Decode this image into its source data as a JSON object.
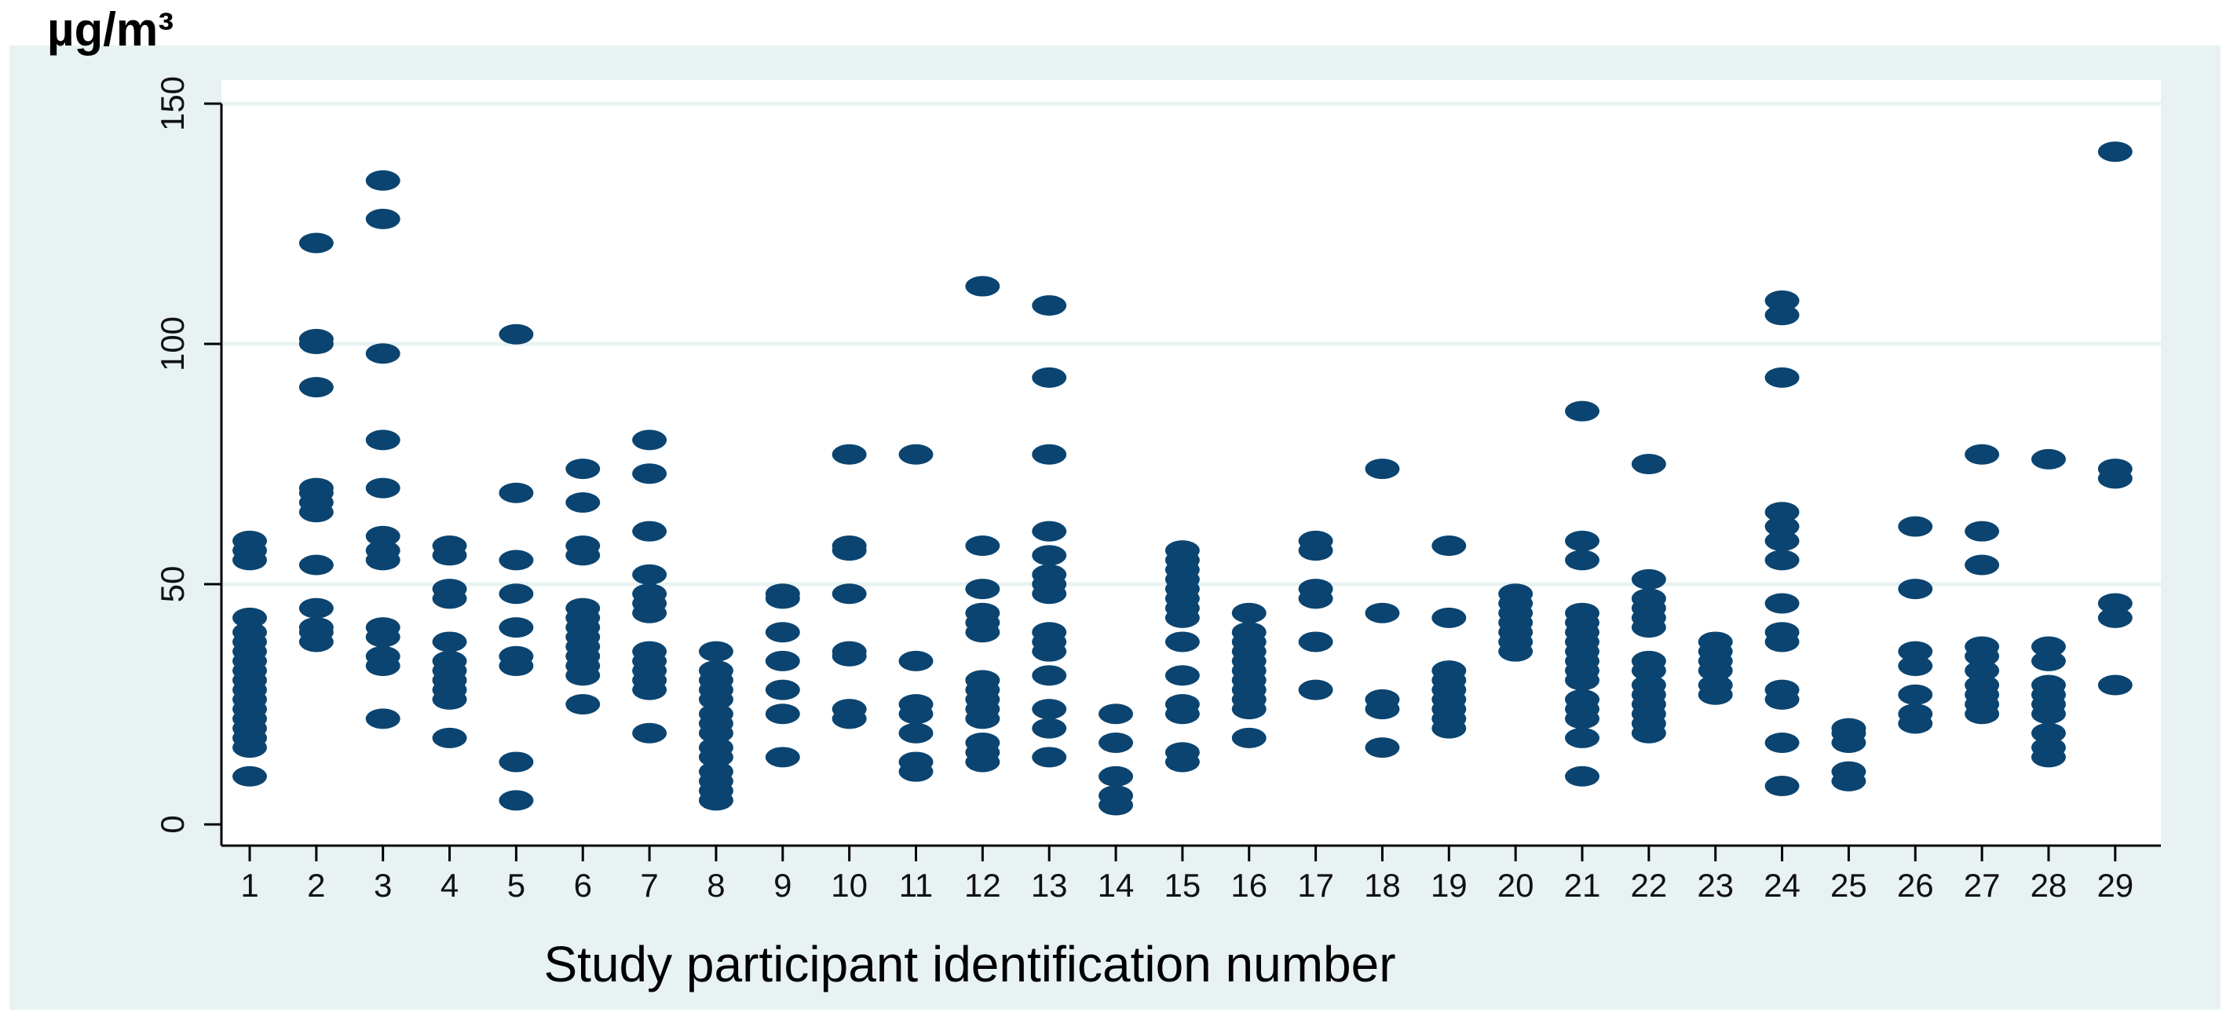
{
  "chart_data": {
    "type": "scatter",
    "title": "",
    "ylabel": "µg/m³",
    "xlabel": "Study participant identification number",
    "ylim": [
      0,
      150
    ],
    "y_ticks": [
      0,
      50,
      100,
      150
    ],
    "grid": true,
    "legend": "none",
    "categories": [
      "1",
      "2",
      "3",
      "4",
      "5",
      "6",
      "7",
      "8",
      "9",
      "10",
      "11",
      "12",
      "13",
      "14",
      "15",
      "16",
      "17",
      "18",
      "19",
      "20",
      "21",
      "22",
      "23",
      "24",
      "25",
      "26",
      "27",
      "28",
      "29"
    ],
    "points": [
      {
        "x": "1",
        "y": [
          10,
          16,
          18,
          20,
          22,
          24,
          26,
          28,
          30,
          32,
          34,
          36,
          38,
          40,
          43,
          55,
          57,
          59
        ]
      },
      {
        "x": "2",
        "y": [
          38,
          40,
          41,
          45,
          54,
          65,
          67,
          69,
          70,
          91,
          100,
          101,
          121
        ]
      },
      {
        "x": "3",
        "y": [
          22,
          33,
          35,
          39,
          41,
          55,
          57,
          60,
          70,
          80,
          98,
          126,
          134
        ]
      },
      {
        "x": "4",
        "y": [
          18,
          26,
          28,
          30,
          32,
          34,
          38,
          47,
          49,
          56,
          58
        ]
      },
      {
        "x": "5",
        "y": [
          5,
          13,
          33,
          35,
          41,
          48,
          55,
          69,
          102
        ]
      },
      {
        "x": "6",
        "y": [
          25,
          31,
          33,
          35,
          37,
          39,
          41,
          43,
          45,
          56,
          58,
          67,
          74
        ]
      },
      {
        "x": "7",
        "y": [
          19,
          28,
          30,
          32,
          34,
          36,
          44,
          46,
          48,
          52,
          61,
          73,
          80
        ]
      },
      {
        "x": "8",
        "y": [
          5,
          7,
          9,
          11,
          14,
          16,
          19,
          21,
          23,
          26,
          28,
          30,
          32,
          36
        ]
      },
      {
        "x": "9",
        "y": [
          14,
          23,
          28,
          34,
          40,
          47,
          48
        ]
      },
      {
        "x": "10",
        "y": [
          22,
          24,
          35,
          36,
          48,
          57,
          58,
          77
        ]
      },
      {
        "x": "11",
        "y": [
          11,
          13,
          19,
          23,
          25,
          34,
          77
        ]
      },
      {
        "x": "12",
        "y": [
          13,
          15,
          17,
          22,
          24,
          26,
          28,
          30,
          40,
          42,
          44,
          49,
          58,
          112
        ]
      },
      {
        "x": "13",
        "y": [
          14,
          20,
          24,
          31,
          36,
          38,
          40,
          48,
          50,
          52,
          56,
          61,
          77,
          93,
          108
        ]
      },
      {
        "x": "14",
        "y": [
          4,
          6,
          10,
          17,
          23
        ]
      },
      {
        "x": "15",
        "y": [
          13,
          15,
          23,
          25,
          31,
          38,
          43,
          45,
          47,
          49,
          51,
          53,
          55,
          57
        ]
      },
      {
        "x": "16",
        "y": [
          18,
          24,
          26,
          28,
          30,
          32,
          34,
          36,
          38,
          40,
          44
        ]
      },
      {
        "x": "17",
        "y": [
          28,
          38,
          47,
          49,
          57,
          59
        ]
      },
      {
        "x": "18",
        "y": [
          16,
          24,
          26,
          44,
          74
        ]
      },
      {
        "x": "19",
        "y": [
          20,
          22,
          24,
          26,
          28,
          30,
          32,
          43,
          58
        ]
      },
      {
        "x": "20",
        "y": [
          36,
          38,
          40,
          42,
          44,
          46,
          48
        ]
      },
      {
        "x": "21",
        "y": [
          10,
          18,
          22,
          24,
          26,
          30,
          32,
          34,
          36,
          38,
          40,
          42,
          44,
          55,
          59,
          86
        ]
      },
      {
        "x": "22",
        "y": [
          19,
          21,
          23,
          25,
          27,
          29,
          32,
          34,
          41,
          43,
          45,
          47,
          51,
          75
        ]
      },
      {
        "x": "23",
        "y": [
          27,
          29,
          32,
          34,
          36,
          38
        ]
      },
      {
        "x": "24",
        "y": [
          8,
          17,
          26,
          28,
          38,
          40,
          46,
          55,
          59,
          62,
          65,
          93,
          106,
          109
        ]
      },
      {
        "x": "25",
        "y": [
          9,
          11,
          17,
          19,
          20
        ]
      },
      {
        "x": "26",
        "y": [
          21,
          23,
          27,
          33,
          36,
          49,
          62
        ]
      },
      {
        "x": "27",
        "y": [
          23,
          25,
          27,
          29,
          32,
          35,
          37,
          54,
          61,
          77
        ]
      },
      {
        "x": "28",
        "y": [
          14,
          16,
          19,
          23,
          25,
          27,
          29,
          34,
          37,
          76
        ]
      },
      {
        "x": "29",
        "y": [
          29,
          43,
          46,
          72,
          74,
          140
        ]
      }
    ]
  }
}
